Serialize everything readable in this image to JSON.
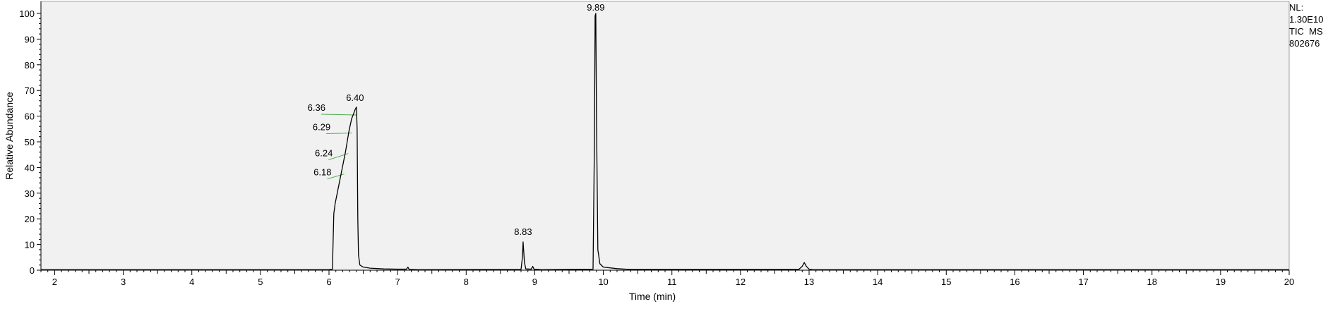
{
  "chart_data": {
    "type": "line",
    "xlabel": "Time (min)",
    "ylabel": "Relative Abundance",
    "xlim": [
      1.8,
      20.0
    ],
    "ylim": [
      0,
      100
    ],
    "x_ticks": [
      2,
      3,
      4,
      5,
      6,
      7,
      8,
      9,
      10,
      11,
      12,
      13,
      14,
      15,
      16,
      17,
      18,
      19,
      20
    ],
    "y_ticks": [
      0,
      10,
      20,
      30,
      40,
      50,
      60,
      70,
      80,
      90,
      100
    ],
    "grid": false,
    "series": [
      {
        "color": "#000000",
        "x": [
          1.8,
          6.0,
          6.05,
          6.07,
          6.09,
          6.12,
          6.18,
          6.24,
          6.29,
          6.33,
          6.36,
          6.38,
          6.4,
          6.41,
          6.42,
          6.43,
          6.45,
          6.5,
          6.6,
          6.8,
          7.0,
          7.13,
          7.15,
          7.17,
          7.3,
          8.8,
          8.82,
          8.83,
          8.85,
          8.87,
          8.95,
          8.97,
          8.99,
          9.1,
          9.85,
          9.87,
          9.88,
          9.89,
          9.9,
          9.92,
          9.95,
          10.0,
          10.2,
          10.4,
          12.85,
          12.9,
          12.93,
          12.96,
          13.0,
          13.05,
          20.0
        ],
        "y": [
          0.2,
          0.2,
          0.4,
          22,
          26,
          30,
          38,
          46,
          54,
          59,
          61,
          62.5,
          63.5,
          55,
          20,
          6,
          2,
          1.2,
          0.8,
          0.5,
          0.4,
          0.4,
          1.2,
          0.3,
          0.2,
          0.3,
          5,
          11,
          3,
          0.5,
          0.4,
          1.5,
          0.4,
          0.2,
          0.4,
          50,
          99,
          100,
          60,
          8,
          2.5,
          1.2,
          0.6,
          0.3,
          0.3,
          1.5,
          3,
          1.5,
          0.4,
          0.2,
          0.2
        ]
      }
    ],
    "peak_labels": [
      {
        "text": "6.40",
        "x": 6.4,
        "y": 63.5
      },
      {
        "text": "6.36",
        "x": 6.36,
        "y": 61
      },
      {
        "text": "6.29",
        "x": 6.29,
        "y": 54
      },
      {
        "text": "6.24",
        "x": 6.24,
        "y": 46
      },
      {
        "text": "6.18",
        "x": 6.18,
        "y": 38
      },
      {
        "text": "8.83",
        "x": 8.83,
        "y": 11
      },
      {
        "text": "9.89",
        "x": 9.89,
        "y": 100
      }
    ]
  },
  "info": {
    "nl_label": "NL:",
    "nl_value": "1.30E10",
    "trace_type": "TIC  MS",
    "file_id": "802676"
  },
  "colors": {
    "plot_background": "#f1f1f1",
    "trace": "#000000",
    "peak_annotation_line": "#4aa84a"
  }
}
